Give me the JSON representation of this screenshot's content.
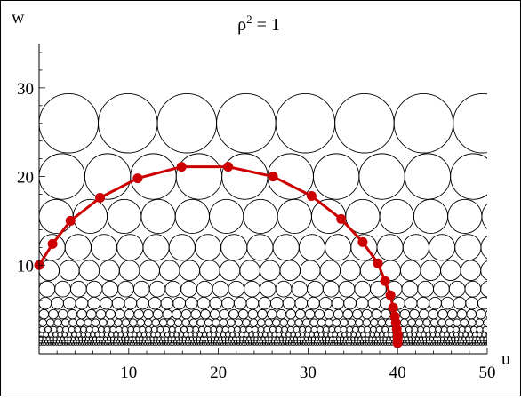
{
  "chart_data": {
    "type": "scatter",
    "title_base": "ρ",
    "title_sup": "2",
    "title_rest": " = 1",
    "xlabel": "u",
    "ylabel": "w",
    "xlim": [
      0,
      50
    ],
    "ylim": [
      0,
      35
    ],
    "xticks": [
      10,
      20,
      30,
      40,
      50
    ],
    "yticks": [
      10,
      20,
      30
    ],
    "grid": false,
    "circle_color": "#000000",
    "curve_color": "#cc0000",
    "circle_rows": [
      {
        "w": 26.0,
        "r": 3.3
      },
      {
        "w": 20.0,
        "r": 2.55
      },
      {
        "w": 15.5,
        "r": 1.9
      },
      {
        "w": 12.0,
        "r": 1.45
      },
      {
        "w": 9.4,
        "r": 1.12
      },
      {
        "w": 7.3,
        "r": 0.88
      },
      {
        "w": 5.7,
        "r": 0.68
      },
      {
        "w": 4.45,
        "r": 0.53
      },
      {
        "w": 3.5,
        "r": 0.42
      },
      {
        "w": 2.75,
        "r": 0.33
      },
      {
        "w": 2.15,
        "r": 0.26
      },
      {
        "w": 1.7,
        "r": 0.2
      },
      {
        "w": 1.35,
        "r": 0.16
      },
      {
        "w": 1.1,
        "r": 0.13
      }
    ],
    "curve_points": [
      {
        "u": 0.0,
        "w": 10.0
      },
      {
        "u": 1.5,
        "w": 12.4
      },
      {
        "u": 3.5,
        "w": 15.0
      },
      {
        "u": 6.8,
        "w": 17.6
      },
      {
        "u": 11.0,
        "w": 19.8
      },
      {
        "u": 15.9,
        "w": 21.1
      },
      {
        "u": 21.1,
        "w": 21.1
      },
      {
        "u": 26.1,
        "w": 20.0
      },
      {
        "u": 30.4,
        "w": 17.8
      },
      {
        "u": 33.7,
        "w": 15.2
      },
      {
        "u": 36.1,
        "w": 12.6
      },
      {
        "u": 37.8,
        "w": 10.2
      },
      {
        "u": 38.6,
        "w": 8.2
      },
      {
        "u": 39.2,
        "w": 6.6
      },
      {
        "u": 39.5,
        "w": 5.2
      },
      {
        "u": 39.7,
        "w": 4.2
      },
      {
        "u": 39.8,
        "w": 3.5
      },
      {
        "u": 39.9,
        "w": 2.8
      },
      {
        "u": 40.0,
        "w": 2.2
      },
      {
        "u": 40.0,
        "w": 1.7
      },
      {
        "u": 40.0,
        "w": 1.2
      }
    ]
  }
}
